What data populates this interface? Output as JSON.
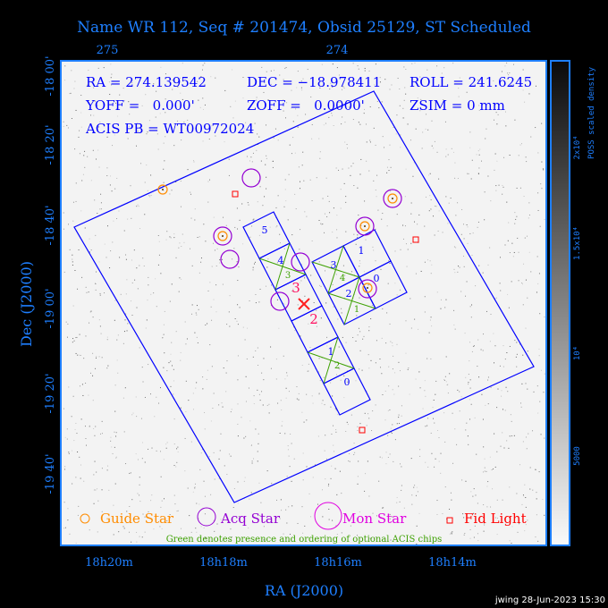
{
  "title": "Name WR 112, Seq # 201474, Obsid 25129, ST Scheduled",
  "info": {
    "ra": "RA = 274.139542",
    "dec": "DEC = −18.978411",
    "roll": "ROLL = 241.6245",
    "yoff": "YOFF =   0.000'",
    "zoff": "ZOFF =   0.0000'",
    "zsim": "ZSIM = 0 mm",
    "acis_pb": "ACIS PB = WT00972024"
  },
  "chart_data": {
    "type": "scatter",
    "xlabel": "RA (J2000)",
    "ylabel": "Dec (J2000)",
    "x_ticks_bottom": [
      "18h20m",
      "18h18m",
      "18h16m",
      "18h14m"
    ],
    "x_ticks_top": [
      "275",
      "274"
    ],
    "y_ticks": [
      "-18 00'",
      "-18 20'",
      "-18 40'",
      "-19 00'",
      "-19 20'",
      "-19 40'"
    ],
    "colorbar": {
      "label": "POSS scaled density",
      "ticks": [
        "2x10⁴",
        "1.5x10⁴",
        "10⁴",
        "5000"
      ]
    },
    "chip_labels": {
      "S": [
        "5",
        "4",
        "3",
        "2",
        "1",
        "0"
      ],
      "I": [
        "3",
        "1",
        "2",
        "0"
      ],
      "optional_order": [
        "3",
        "4",
        "1",
        "2"
      ]
    },
    "legend": [
      "Guide Star",
      "Acq Star",
      "Mon Star",
      "Fid Light"
    ],
    "note": "Green denotes presence and ordering of optional ACIS chips"
  },
  "colors": {
    "axis": "#1e7fff",
    "chip": "#0000ff",
    "guide": "#ff8c00",
    "acq": "#9400d3",
    "fid": "#ff0000",
    "optional": "#3ca000"
  },
  "footer": "jwing 28-Jun-2023 15:30"
}
